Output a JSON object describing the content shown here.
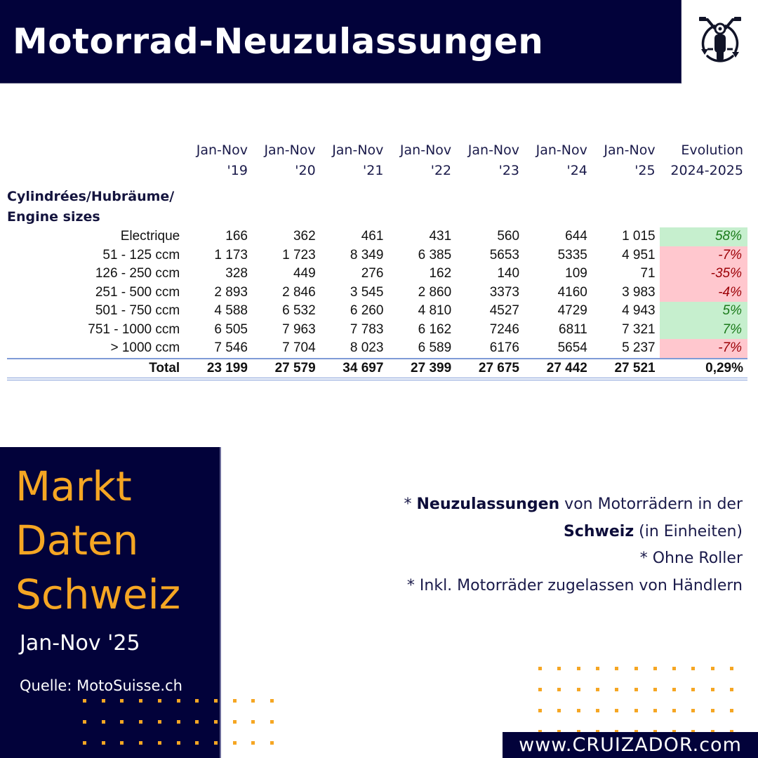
{
  "header": {
    "title": "Motorrad-Neuzulassungen",
    "logo_icon": "motorcycle-cycle-icon"
  },
  "table": {
    "columns": [
      {
        "line1": "Jan-Nov",
        "line2": "'19"
      },
      {
        "line1": "Jan-Nov",
        "line2": "'20"
      },
      {
        "line1": "Jan-Nov",
        "line2": "'21"
      },
      {
        "line1": "Jan-Nov",
        "line2": "'22"
      },
      {
        "line1": "Jan-Nov",
        "line2": "'23"
      },
      {
        "line1": "Jan-Nov",
        "line2": "'24"
      },
      {
        "line1": "Jan-Nov",
        "line2": "'25"
      },
      {
        "line1": "Evolution",
        "line2": "2024-2025"
      }
    ],
    "category_header_line1": "Cylindrées/Hubräume/",
    "category_header_line2": "Engine sizes",
    "rows": [
      {
        "label": "Electrique",
        "values": [
          "166",
          "362",
          "461",
          "431",
          "560",
          "644",
          "1 015"
        ],
        "evolution": "58%",
        "trend": "pos"
      },
      {
        "label": "51 - 125 ccm",
        "values": [
          "1 173",
          "1 723",
          "8 349",
          "6 385",
          "5653",
          "5335",
          "4 951"
        ],
        "evolution": "-7%",
        "trend": "neg"
      },
      {
        "label": "126 - 250 ccm",
        "values": [
          "328",
          "449",
          "276",
          "162",
          "140",
          "109",
          "71"
        ],
        "evolution": "-35%",
        "trend": "neg"
      },
      {
        "label": "251 - 500 ccm",
        "values": [
          "2 893",
          "2 846",
          "3 545",
          "2 860",
          "3373",
          "4160",
          "3 983"
        ],
        "evolution": "-4%",
        "trend": "neg"
      },
      {
        "label": "501 - 750 ccm",
        "values": [
          "4 588",
          "6 532",
          "6 260",
          "4 810",
          "4527",
          "4729",
          "4 943"
        ],
        "evolution": "5%",
        "trend": "pos"
      },
      {
        "label": "751 - 1000 ccm",
        "values": [
          "6 505",
          "7 963",
          "7 783",
          "6 162",
          "7246",
          "6811",
          "7 321"
        ],
        "evolution": "7%",
        "trend": "pos"
      },
      {
        "label": "> 1000 ccm",
        "values": [
          "7 546",
          "7 704",
          "8 023",
          "6 589",
          "6176",
          "5654",
          "5 237"
        ],
        "evolution": "-7%",
        "trend": "neg"
      }
    ],
    "total": {
      "label": "Total",
      "values": [
        "23 199",
        "27 579",
        "34 697",
        "27 399",
        "27 675",
        "27 442",
        "27 521"
      ],
      "evolution": "0,29%"
    }
  },
  "side_panel": {
    "title_lines": [
      "Markt",
      "Daten",
      "Schweiz"
    ],
    "period": "Jan-Nov '25",
    "source": "Quelle: MotoSuisse.ch"
  },
  "notes": {
    "line1_prefix": "* ",
    "line1_bold": "Neuzulassungen",
    "line1_rest": " von Motorrädern in der",
    "line2_bold": "Schweiz",
    "line2_rest": " (in Einheiten)",
    "line3": "* Ohne Roller",
    "line4": "* Inkl. Motorräder zugelassen von Händlern"
  },
  "footer": {
    "url": "www.CRUIZADOR.com"
  },
  "colors": {
    "navy": "#02023a",
    "accent_orange": "#f5a623",
    "positive_bg": "#c6efce",
    "positive_text": "#1a7a1a",
    "negative_bg": "#ffc7ce",
    "negative_text": "#9c0006",
    "total_border": "#7f9bd6"
  },
  "chart_data": {
    "type": "table",
    "title": "Motorrad-Neuzulassungen",
    "subtitle": "Markt Daten Schweiz, Jan-Nov '25",
    "categories": [
      "Jan-Nov '19",
      "Jan-Nov '20",
      "Jan-Nov '21",
      "Jan-Nov '22",
      "Jan-Nov '23",
      "Jan-Nov '24",
      "Jan-Nov '25"
    ],
    "row_header": "Cylindrées/Hubräume/Engine sizes",
    "series": [
      {
        "name": "Electrique",
        "values": [
          166,
          362,
          461,
          431,
          560,
          644,
          1015
        ],
        "evolution_2024_2025": "58%"
      },
      {
        "name": "51 - 125 ccm",
        "values": [
          1173,
          1723,
          8349,
          6385,
          5653,
          5335,
          4951
        ],
        "evolution_2024_2025": "-7%"
      },
      {
        "name": "126 - 250 ccm",
        "values": [
          328,
          449,
          276,
          162,
          140,
          109,
          71
        ],
        "evolution_2024_2025": "-35%"
      },
      {
        "name": "251 - 500 ccm",
        "values": [
          2893,
          2846,
          3545,
          2860,
          3373,
          4160,
          3983
        ],
        "evolution_2024_2025": "-4%"
      },
      {
        "name": "501 - 750 ccm",
        "values": [
          4588,
          6532,
          6260,
          4810,
          4527,
          4729,
          4943
        ],
        "evolution_2024_2025": "5%"
      },
      {
        "name": "751 - 1000 ccm",
        "values": [
          6505,
          7963,
          7783,
          6162,
          7246,
          6811,
          7321
        ],
        "evolution_2024_2025": "7%"
      },
      {
        "name": "> 1000 ccm",
        "values": [
          7546,
          7704,
          8023,
          6589,
          6176,
          5654,
          5237
        ],
        "evolution_2024_2025": "-7%"
      },
      {
        "name": "Total",
        "values": [
          23199,
          27579,
          34697,
          27399,
          27675,
          27442,
          27521
        ],
        "evolution_2024_2025": "0,29%"
      }
    ],
    "source": "Quelle: MotoSuisse.ch"
  }
}
